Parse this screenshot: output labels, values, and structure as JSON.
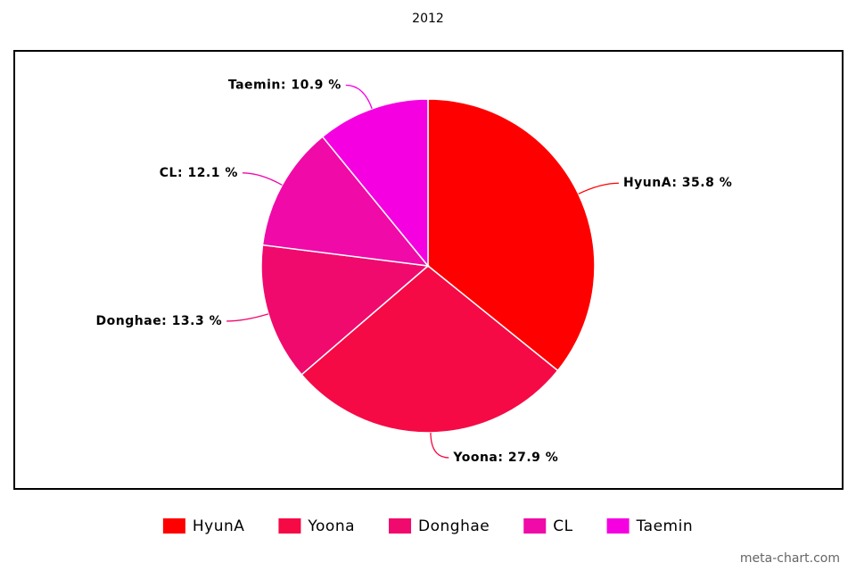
{
  "chart_data": {
    "type": "pie",
    "title": "2012",
    "categories": [
      "HyunA",
      "Yoona",
      "Donghae",
      "CL",
      "Taemin"
    ],
    "values": [
      35.8,
      27.9,
      13.3,
      12.1,
      10.9
    ],
    "value_labels": [
      "HyunA: 35.8 %",
      "Yoona: 27.9 %",
      "Donghae: 13.3 %",
      "CL: 12.1 %",
      "Taemin: 10.9 %"
    ],
    "colors": [
      "#ff0000",
      "#f50a45",
      "#f00a6e",
      "#f00aa8",
      "#f500e0"
    ],
    "legend": "bottom",
    "credit": "meta-chart.com"
  }
}
